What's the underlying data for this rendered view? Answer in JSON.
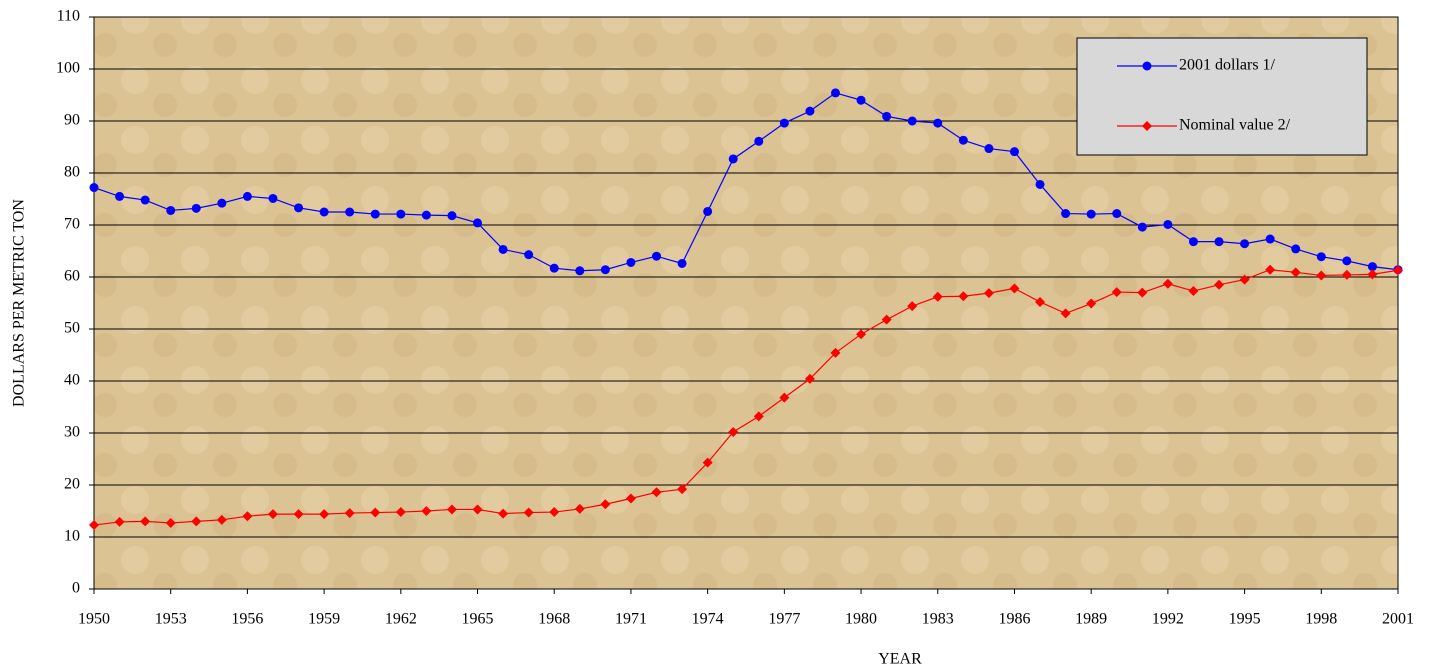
{
  "chart_data": {
    "type": "line",
    "xlabel": "YEAR",
    "ylabel": "DOLLARS PER METRIC TON",
    "x": [
      1950,
      1951,
      1952,
      1953,
      1954,
      1955,
      1956,
      1957,
      1958,
      1959,
      1960,
      1961,
      1962,
      1963,
      1964,
      1965,
      1966,
      1967,
      1968,
      1969,
      1970,
      1971,
      1972,
      1973,
      1974,
      1975,
      1976,
      1977,
      1978,
      1979,
      1980,
      1981,
      1982,
      1983,
      1984,
      1985,
      1986,
      1987,
      1988,
      1989,
      1990,
      1991,
      1992,
      1993,
      1994,
      1995,
      1996,
      1997,
      1998,
      1999,
      2000,
      2001
    ],
    "series": [
      {
        "name": "2001 dollars 1/",
        "color": "#0000ff",
        "marker": "circle",
        "values": [
          77.2,
          75.5,
          74.8,
          72.8,
          73.2,
          74.2,
          75.5,
          75.1,
          73.3,
          72.5,
          72.5,
          72.1,
          72.1,
          71.9,
          71.8,
          70.4,
          65.3,
          64.3,
          61.7,
          61.2,
          61.4,
          62.8,
          64.0,
          62.6,
          72.6,
          82.7,
          86.1,
          89.6,
          91.9,
          95.4,
          94.0,
          90.9,
          90.0,
          89.6,
          86.3,
          84.7,
          84.1,
          77.8,
          72.2,
          72.1,
          72.2,
          69.6,
          70.1,
          66.8,
          66.8,
          66.4,
          67.3,
          65.4,
          63.9,
          63.1,
          62.0,
          61.4
        ]
      },
      {
        "name": "Nominal value 2/",
        "color": "#ff0000",
        "marker": "diamond",
        "values": [
          12.3,
          12.9,
          13.0,
          12.7,
          13.0,
          13.3,
          14.0,
          14.4,
          14.4,
          14.4,
          14.6,
          14.7,
          14.8,
          15.0,
          15.3,
          15.3,
          14.5,
          14.7,
          14.8,
          15.4,
          16.3,
          17.4,
          18.6,
          19.2,
          24.3,
          30.2,
          33.2,
          36.8,
          40.4,
          45.4,
          49.0,
          51.8,
          54.4,
          56.2,
          56.3,
          56.9,
          57.8,
          55.2,
          53.0,
          54.9,
          57.1,
          57.0,
          58.7,
          57.3,
          58.5,
          59.5,
          61.4,
          60.9,
          60.3,
          60.4,
          60.5,
          61.3
        ]
      }
    ],
    "xlim": [
      1950,
      2001
    ],
    "xticks": [
      1950,
      1953,
      1956,
      1959,
      1962,
      1965,
      1968,
      1971,
      1974,
      1977,
      1980,
      1983,
      1986,
      1989,
      1992,
      1995,
      1998,
      2001
    ],
    "ylim": [
      0,
      110
    ],
    "yticks": [
      0,
      10,
      20,
      30,
      40,
      50,
      60,
      70,
      80,
      90,
      100,
      110
    ],
    "grid": true,
    "legend": "upper right"
  }
}
